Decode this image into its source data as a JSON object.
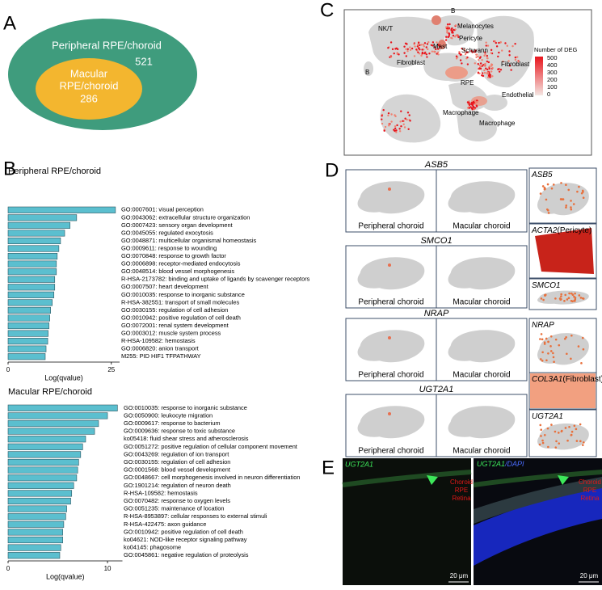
{
  "panel_labels": [
    "A",
    "B",
    "C",
    "D",
    "E"
  ],
  "venn": {
    "outer_label": "Peripheral RPE/choroid",
    "outer_count": "521",
    "inner_label": [
      "Macular",
      "RPE/choroid"
    ],
    "inner_count": "286"
  },
  "chart_data": [
    {
      "type": "barh",
      "title": "Peripheral RPE/choroid",
      "xlabel": "Log(qvalue)",
      "color": "#5bbfcf",
      "categories": [
        "GO:0007601: visual perception",
        "GO:0043062: extracellular structure organization",
        "GO:0007423: sensory organ development",
        "GO:0045055: regulated exocytosis",
        "GO:0048871: multicellular organismal homeostasis",
        "GO:0009611: response to wounding",
        "GO:0070848: response to growth factor",
        "GO:0006898: receptor-mediated endocytosis",
        "GO:0048514: blood vessel morphogenesis",
        "R-HSA-2173782: binding and uptake of ligands by scavenger receptors",
        "GO:0007507: heart development",
        "GO:0010035: response to inorganic substance",
        "R-HSA-382551: transport of small molecules",
        "GO:0030155: regulation of cell adhesion",
        "GO:0010942: positive regulation of cell death",
        "GO:0072001: renal system development",
        "GO:0003012: muscle system process",
        "R-HSA-109582: hemostasis",
        "GO:0006820: anion transport",
        "M255: PID HIF1 TFPATHWAY"
      ],
      "values": [
        26,
        16.6,
        15,
        13.7,
        12.7,
        12.3,
        11.9,
        11.7,
        11.7,
        11.3,
        11.3,
        11.1,
        10.7,
        10.3,
        10.1,
        9.9,
        9.7,
        9.6,
        9.2,
        9.0
      ],
      "xlim": [
        0,
        27
      ],
      "xticks": [
        0,
        25
      ]
    },
    {
      "type": "barh",
      "title": "Macular RPE/choroid",
      "xlabel": "Log(qvalue)",
      "color": "#5bbfcf",
      "categories": [
        "GO:0010035: response to inorganic substance",
        "GO:0050900: leukocyte migration",
        "GO:0009617: response to bacterium",
        "GO:0009636: response to toxic substance",
        "ko05418: fluid shear stress and atherosclerosis",
        "GO:0051272: positive regulation of cellular component movement",
        "GO:0043269: regulation of ion transport",
        "GO:0030155: regulation of cell adhesion",
        "GO:0001568: blood vessel development",
        "GO:0048667: cell morphogenesis involved in neuron differentiation",
        "GO:1901214: regulation of neuron death",
        "R-HSA-109582: hemostasis",
        "GO:0070482: response to oxygen levels",
        "GO:0051235: maintenance of location",
        "R-HSA-8953897: cellular responses to external stimuli",
        "R-HSA-422475: axon guidance",
        "GO:0010942: positive regulation of cell death",
        "ko04621: NOD-like receptor signaling pathway",
        "ko04145: phagosome",
        "GO:0045861: negative regulation of proteolysis"
      ],
      "values": [
        11,
        10,
        9.1,
        8.7,
        7.8,
        7.5,
        7.3,
        7.1,
        7.0,
        6.9,
        6.6,
        6.4,
        6.3,
        5.9,
        5.8,
        5.6,
        5.5,
        5.5,
        5.3,
        5.2
      ],
      "xlim": [
        0,
        11.5
      ],
      "xticks": [
        0,
        10
      ]
    }
  ],
  "umap": {
    "clusters": [
      "NK/T",
      "Mast",
      "B",
      "Melanocytes",
      "Pericyte",
      "Schwann",
      "Fibroblast",
      "Fibroblast",
      "B",
      "RPE",
      "Endothelial",
      "Macrophage",
      "Macrophage"
    ],
    "legend_title": "Number of DEG",
    "legend_ticks": [
      "500",
      "400",
      "300",
      "200",
      "100",
      "0"
    ]
  },
  "spatial": {
    "genes": [
      "ASB5",
      "SMCO1",
      "NRAP",
      "UGT2A1"
    ],
    "left_label": "Peripheral choroid",
    "right_label": "Macular choroid",
    "side": [
      {
        "gene": "ASB5"
      },
      {
        "gene": "ACTA2",
        "note": "(Pericyte)"
      },
      {
        "gene": "SMCO1"
      },
      {
        "gene": "NRAP"
      },
      {
        "gene": "COL3A1",
        "note": "(Fibroblast)"
      },
      {
        "gene": "UGT2A1"
      }
    ]
  },
  "ihc": {
    "left_label": "UGT2A1",
    "right_label_a": "UGT2A1",
    "right_label_b": "/DAPI",
    "layers": [
      "Choroid",
      "RPE",
      "Retina"
    ],
    "scale": "20 μm"
  }
}
